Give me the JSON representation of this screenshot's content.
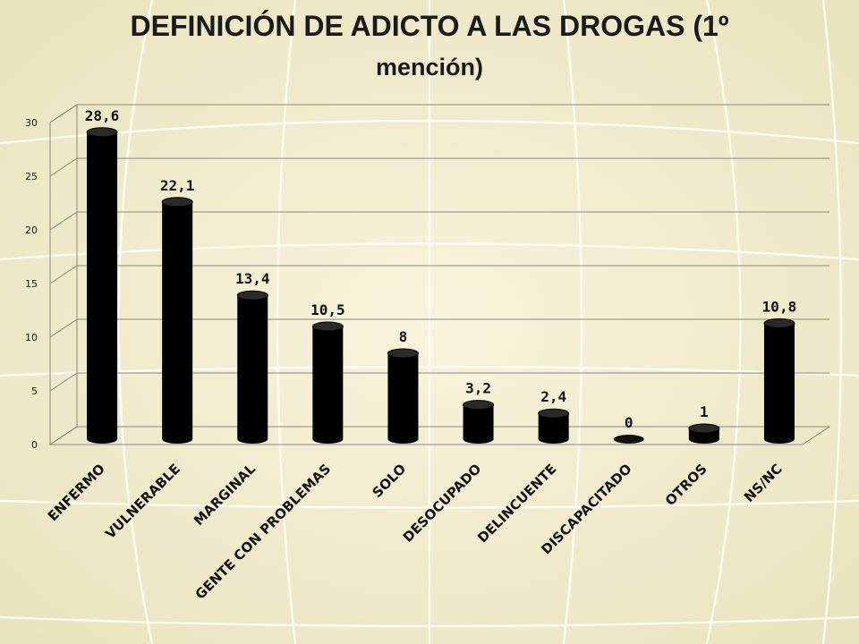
{
  "title_line1": "DEFINICIÓN DE ADICTO A LAS DROGAS (1º",
  "title_line2": "mención)",
  "chart_data": {
    "type": "bar",
    "title": "DEFINICIÓN DE ADICTO A LAS DROGAS (1º mención)",
    "categories": [
      "ENFERMO",
      "VULNERABLE",
      "MARGINAL",
      "GENTE CON PROBLEMAS",
      "SOLO",
      "DESOCUPADO",
      "DELINCUENTE",
      "DISCAPACITADO",
      "OTROS",
      "NS/NC"
    ],
    "values": [
      28.6,
      22.1,
      13.4,
      10.5,
      8,
      3.2,
      2.4,
      0,
      1,
      10.8
    ],
    "value_labels": [
      "28,6",
      "22,1",
      "13,4",
      "10,5",
      "8",
      "3,2",
      "2,4",
      "0",
      "1",
      "10,8"
    ],
    "yticks": [
      0,
      5,
      10,
      15,
      20,
      25,
      30
    ],
    "ylim": [
      0,
      30
    ],
    "grid": true,
    "bar_color": "#000000",
    "xlabel": "",
    "ylabel": ""
  }
}
